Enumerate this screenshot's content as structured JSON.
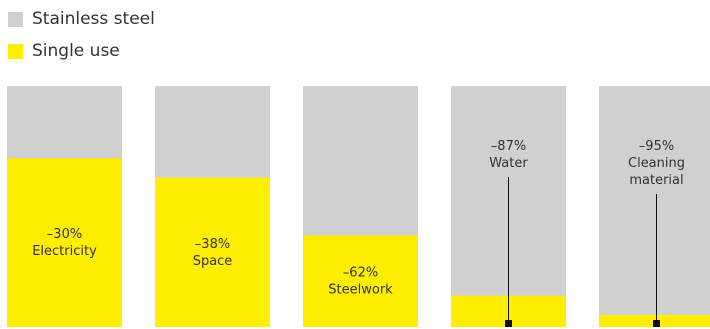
{
  "legend": {
    "stainless_label": "Stainless steel",
    "single_use_label": "Single use"
  },
  "colors": {
    "stainless": "#d0d0d0",
    "single_use": "#ffee00",
    "text": "#333333",
    "marker": "#111111"
  },
  "chart_data": {
    "type": "bar",
    "categories": [
      "Electricity",
      "Space",
      "Steelwork",
      "Water",
      "Cleaning material"
    ],
    "series": [
      {
        "name": "Stainless steel",
        "values": [
          100,
          100,
          100,
          100,
          100
        ]
      },
      {
        "name": "Single use",
        "values": [
          70,
          62,
          38,
          13,
          5
        ]
      }
    ],
    "labels": [
      {
        "value": "–30%",
        "lines": [
          "Electricity"
        ],
        "placement": "inside"
      },
      {
        "value": "–38%",
        "lines": [
          "Space"
        ],
        "placement": "inside"
      },
      {
        "value": "–62%",
        "lines": [
          "Steelwork"
        ],
        "placement": "inside"
      },
      {
        "value": "–87%",
        "lines": [
          "Water"
        ],
        "placement": "above-leader"
      },
      {
        "value": "–95%",
        "lines": [
          "Cleaning",
          "material"
        ],
        "placement": "above-leader"
      }
    ],
    "ylim": [
      0,
      100
    ]
  }
}
